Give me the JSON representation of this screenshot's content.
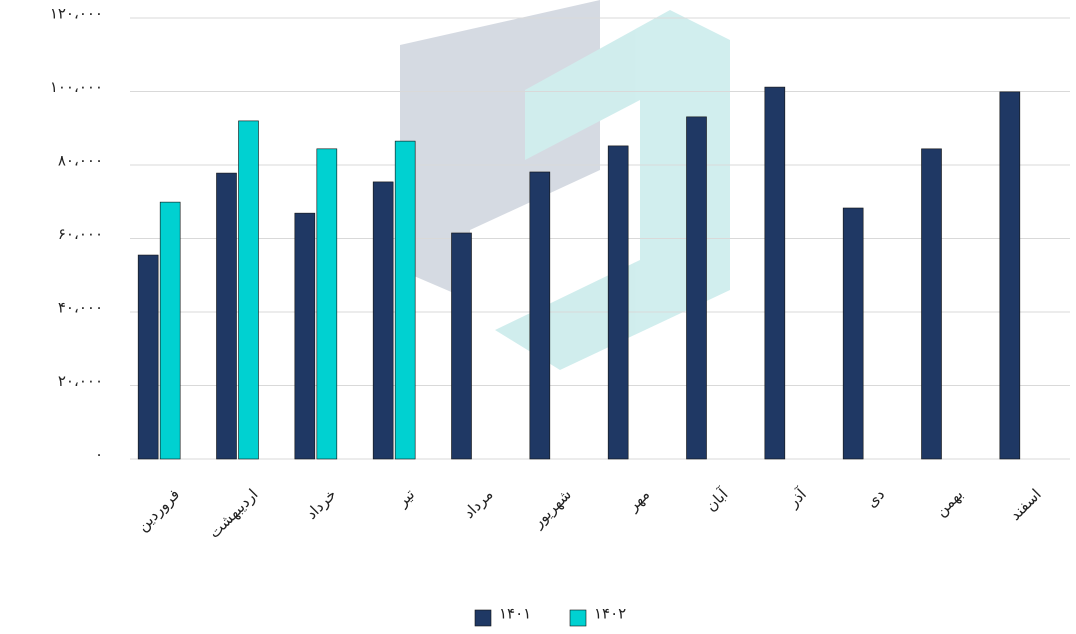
{
  "chart_data": {
    "type": "bar",
    "categories": [
      "فروردین",
      "اردیبهشت",
      "خرداد",
      "تیر",
      "مرداد",
      "شهریور",
      "مهر",
      "آبان",
      "آذر",
      "دی",
      "بهمن",
      "اسفند"
    ],
    "series": [
      {
        "name": "۱۴۰۱",
        "color": "#1f3864",
        "values": [
          55500,
          77800,
          66900,
          75400,
          61500,
          78100,
          85200,
          93100,
          101200,
          68300,
          84400,
          99900
        ]
      },
      {
        "name": "۱۴۰۲",
        "color": "#00d1d1",
        "values": [
          69900,
          92000,
          84400,
          86500,
          null,
          null,
          null,
          null,
          null,
          null,
          null,
          null
        ]
      }
    ],
    "ylim": [
      0,
      120000
    ],
    "yticks": [
      {
        "value": 0,
        "label": "۰"
      },
      {
        "value": 20000,
        "label": "۲۰،۰۰۰"
      },
      {
        "value": 40000,
        "label": "۴۰،۰۰۰"
      },
      {
        "value": 60000,
        "label": "۶۰،۰۰۰"
      },
      {
        "value": 80000,
        "label": "۸۰،۰۰۰"
      },
      {
        "value": 100000,
        "label": "۱۰۰،۰۰۰"
      },
      {
        "value": 120000,
        "label": "۱۲۰،۰۰۰"
      }
    ],
    "grid": true,
    "legend": "bottom"
  }
}
